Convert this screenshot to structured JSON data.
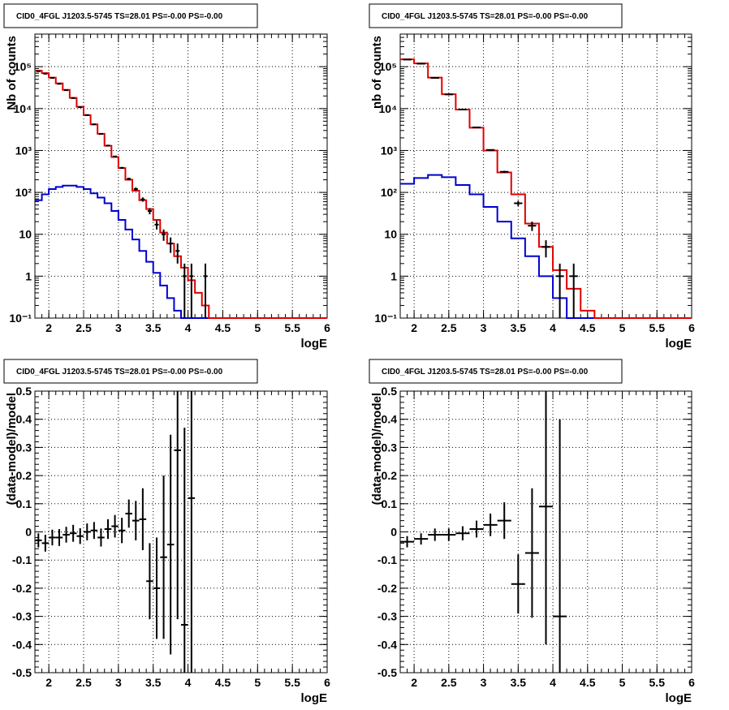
{
  "chart_data": [
    {
      "id": "p0",
      "type": "histogram",
      "title": "CID0_4FGL J1203.5-5745 TS=28.01 PS=-0.00 PS=-0.00",
      "xlabel": "logE",
      "ylabel": "Nb of counts",
      "log_y": true,
      "xlim": [
        1.8,
        6
      ],
      "ylim": [
        0.1,
        600000
      ],
      "grid": true,
      "x_ticks": [
        "2",
        "2.5",
        "3",
        "3.5",
        "4",
        "4.5",
        "5",
        "5.5",
        "6"
      ],
      "x_tick_values": [
        2,
        2.5,
        3,
        3.5,
        4,
        4.5,
        5,
        5.5,
        6
      ],
      "y_ticks": [
        "10⁻¹",
        "1",
        "10",
        "10²",
        "10³",
        "10⁴",
        "10⁵"
      ],
      "y_tick_values": [
        0.1,
        1,
        10,
        100,
        1000,
        10000,
        100000
      ],
      "bin_edges": [
        1.8,
        1.9,
        2.0,
        2.1,
        2.2,
        2.3,
        2.4,
        2.5,
        2.6,
        2.7,
        2.8,
        2.9,
        3.0,
        3.1,
        3.2,
        3.3,
        3.4,
        3.5,
        3.6,
        3.7,
        3.8,
        3.9,
        4.0,
        4.1,
        4.2,
        4.3,
        4.4,
        4.5,
        4.6,
        4.7,
        4.8,
        4.9,
        5.0,
        5.1,
        5.2,
        5.3,
        5.4,
        5.5,
        5.6,
        5.7,
        5.8,
        5.9,
        6.0
      ],
      "model_total": [
        80000,
        70000,
        55000,
        40000,
        28000,
        18000,
        11000,
        7000,
        4200,
        2500,
        1300,
        700,
        380,
        200,
        110,
        65,
        40,
        22,
        11,
        6,
        3,
        1.6,
        0.8,
        0.4,
        0.2,
        0.1,
        0.08,
        0.08,
        0.08,
        0.08,
        0.08,
        0.08,
        0.08,
        0.08,
        0.08,
        0.08,
        0.08,
        0.08,
        0.08,
        0.08,
        0.08,
        0.08
      ],
      "model_source": [
        65,
        90,
        120,
        135,
        145,
        145,
        135,
        120,
        95,
        75,
        55,
        36,
        22,
        13,
        7.5,
        4,
        2.2,
        1.2,
        0.6,
        0.3,
        0.15,
        0.08,
        0.08,
        0.08,
        0.08,
        0.08,
        0.08,
        0.08,
        0.08,
        0.08,
        0.08,
        0.08,
        0.08,
        0.08,
        0.08,
        0.08,
        0.08,
        0.08,
        0.08,
        0.08,
        0.08,
        0.08
      ],
      "data_points": [
        {
          "x": 1.85,
          "y": 78000,
          "err": 280
        },
        {
          "x": 1.95,
          "y": 68000,
          "err": 260
        },
        {
          "x": 2.05,
          "y": 54000,
          "err": 230
        },
        {
          "x": 2.15,
          "y": 39000,
          "err": 200
        },
        {
          "x": 2.25,
          "y": 27500,
          "err": 165
        },
        {
          "x": 2.35,
          "y": 17800,
          "err": 135
        },
        {
          "x": 2.45,
          "y": 10800,
          "err": 105
        },
        {
          "x": 2.55,
          "y": 7000,
          "err": 85
        },
        {
          "x": 2.65,
          "y": 4200,
          "err": 65
        },
        {
          "x": 2.75,
          "y": 2480,
          "err": 50
        },
        {
          "x": 2.85,
          "y": 1310,
          "err": 36
        },
        {
          "x": 2.95,
          "y": 720,
          "err": 27
        },
        {
          "x": 3.05,
          "y": 385,
          "err": 20
        },
        {
          "x": 3.15,
          "y": 210,
          "err": 14
        },
        {
          "x": 3.25,
          "y": 120,
          "err": 11
        },
        {
          "x": 3.35,
          "y": 68,
          "err": 8
        },
        {
          "x": 3.45,
          "y": 36,
          "err": 6
        },
        {
          "x": 3.55,
          "y": 17,
          "err": 4
        },
        {
          "x": 3.65,
          "y": 10,
          "err": 3
        },
        {
          "x": 3.75,
          "y": 6,
          "err": 2.4
        },
        {
          "x": 3.85,
          "y": 4,
          "err": 2
        },
        {
          "x": 3.95,
          "y": 1,
          "err": 1
        },
        {
          "x": 4.05,
          "y": 1,
          "err": 1
        },
        {
          "x": 4.25,
          "y": 1,
          "err": 1
        }
      ]
    },
    {
      "id": "p1",
      "type": "histogram",
      "title": "CID0_4FGL J1203.5-5745 TS=28.01 PS=-0.00 PS=-0.00",
      "xlabel": "logE",
      "ylabel": "nb of counts",
      "log_y": true,
      "xlim": [
        1.8,
        6
      ],
      "ylim": [
        0.1,
        600000
      ],
      "grid": true,
      "x_ticks": [
        "2",
        "2.5",
        "3",
        "3.5",
        "4",
        "4.5",
        "5",
        "5.5",
        "6"
      ],
      "x_tick_values": [
        2,
        2.5,
        3,
        3.5,
        4,
        4.5,
        5,
        5.5,
        6
      ],
      "y_ticks": [
        "10⁻¹",
        "1",
        "10",
        "10²",
        "10³",
        "10⁴",
        "10⁵"
      ],
      "y_tick_values": [
        0.1,
        1,
        10,
        100,
        1000,
        10000,
        100000
      ],
      "bin_edges": [
        1.8,
        2.0,
        2.2,
        2.4,
        2.6,
        2.8,
        3.0,
        3.2,
        3.4,
        3.6,
        3.8,
        4.0,
        4.2,
        4.4,
        4.6,
        4.8,
        5.0,
        5.2,
        5.4,
        5.6,
        5.8,
        6.0
      ],
      "model_total": [
        150000,
        120000,
        55000,
        22000,
        9500,
        3500,
        1000,
        300,
        90,
        18,
        5,
        1.4,
        0.5,
        0.15,
        0.08,
        0.08,
        0.08,
        0.08,
        0.08,
        0.08,
        0.08
      ],
      "model_source": [
        160,
        220,
        260,
        230,
        150,
        90,
        45,
        20,
        8,
        3,
        1,
        0.3,
        0.1,
        0.08,
        0.08,
        0.08,
        0.08,
        0.08,
        0.08,
        0.08,
        0.08
      ],
      "data_points": [
        {
          "x": 1.9,
          "y": 148000,
          "err": 380
        },
        {
          "x": 2.1,
          "y": 118000,
          "err": 340
        },
        {
          "x": 2.3,
          "y": 54000,
          "err": 230
        },
        {
          "x": 2.5,
          "y": 21800,
          "err": 150
        },
        {
          "x": 2.7,
          "y": 9500,
          "err": 98
        },
        {
          "x": 2.9,
          "y": 3550,
          "err": 60
        },
        {
          "x": 3.1,
          "y": 1030,
          "err": 32
        },
        {
          "x": 3.3,
          "y": 310,
          "err": 18
        },
        {
          "x": 3.5,
          "y": 55,
          "err": 7.5
        },
        {
          "x": 3.7,
          "y": 16,
          "err": 4
        },
        {
          "x": 3.9,
          "y": 5,
          "err": 2.2
        },
        {
          "x": 4.1,
          "y": 1,
          "err": 1
        },
        {
          "x": 4.3,
          "y": 1,
          "err": 1
        }
      ]
    },
    {
      "id": "p2",
      "type": "scatter",
      "title": "CID0_4FGL J1203.5-5745 TS=28.01 PS=-0.00 PS=-0.00",
      "xlabel": "logE",
      "ylabel": "(data-model)/model",
      "xlim": [
        1.8,
        6
      ],
      "ylim": [
        -0.5,
        0.5
      ],
      "grid": true,
      "x_ticks": [
        "2",
        "2.5",
        "3",
        "3.5",
        "4",
        "4.5",
        "5",
        "5.5",
        "6"
      ],
      "x_tick_values": [
        2,
        2.5,
        3,
        3.5,
        4,
        4.5,
        5,
        5.5,
        6
      ],
      "y_ticks": [
        "-0.5",
        "-0.4",
        "-0.3",
        "-0.2",
        "-0.1",
        "0",
        "0.1",
        "0.2",
        "0.3",
        "0.4",
        "0.5"
      ],
      "y_tick_values": [
        -0.5,
        -0.4,
        -0.3,
        -0.2,
        -0.1,
        0,
        0.1,
        0.2,
        0.3,
        0.4,
        0.5
      ],
      "xerr": 0.05,
      "points": [
        {
          "x": 1.85,
          "y": -0.03,
          "err": 0.025
        },
        {
          "x": 1.95,
          "y": -0.04,
          "err": 0.03
        },
        {
          "x": 2.05,
          "y": -0.02,
          "err": 0.028
        },
        {
          "x": 2.15,
          "y": -0.02,
          "err": 0.03
        },
        {
          "x": 2.25,
          "y": -0.01,
          "err": 0.028
        },
        {
          "x": 2.35,
          "y": -0.005,
          "err": 0.03
        },
        {
          "x": 2.45,
          "y": -0.015,
          "err": 0.028
        },
        {
          "x": 2.55,
          "y": 0.0,
          "err": 0.03
        },
        {
          "x": 2.65,
          "y": 0.005,
          "err": 0.03
        },
        {
          "x": 2.75,
          "y": -0.02,
          "err": 0.032
        },
        {
          "x": 2.85,
          "y": 0.01,
          "err": 0.035
        },
        {
          "x": 2.95,
          "y": 0.02,
          "err": 0.04
        },
        {
          "x": 3.05,
          "y": 0.005,
          "err": 0.045
        },
        {
          "x": 3.15,
          "y": 0.065,
          "err": 0.05
        },
        {
          "x": 3.25,
          "y": 0.04,
          "err": 0.07
        },
        {
          "x": 3.35,
          "y": 0.045,
          "err": 0.11
        },
        {
          "x": 3.45,
          "y": -0.175,
          "err": 0.135
        },
        {
          "x": 3.55,
          "y": -0.2,
          "err": 0.18
        },
        {
          "x": 3.65,
          "y": -0.09,
          "err": 0.29
        },
        {
          "x": 3.75,
          "y": -0.045,
          "err": 0.39
        },
        {
          "x": 3.85,
          "y": 0.29,
          "err": 0.6
        },
        {
          "x": 3.95,
          "y": -0.33,
          "err": 0.7
        },
        {
          "x": 4.05,
          "y": 0.12,
          "err": 0.9
        }
      ]
    },
    {
      "id": "p3",
      "type": "scatter",
      "title": "CID0_4FGL J1203.5-5745 TS=28.01 PS=-0.00 PS=-0.00",
      "xlabel": "logE",
      "ylabel": "(data-model)/model",
      "xlim": [
        1.8,
        6
      ],
      "ylim": [
        -0.5,
        0.5
      ],
      "grid": true,
      "x_ticks": [
        "2",
        "2.5",
        "3",
        "3.5",
        "4",
        "4.5",
        "5",
        "5.5",
        "6"
      ],
      "x_tick_values": [
        2,
        2.5,
        3,
        3.5,
        4,
        4.5,
        5,
        5.5,
        6
      ],
      "y_ticks": [
        "-0.5",
        "-0.4",
        "-0.3",
        "-0.2",
        "-0.1",
        "0",
        "0.1",
        "0.2",
        "0.3",
        "0.4",
        "0.5"
      ],
      "y_tick_values": [
        -0.5,
        -0.4,
        -0.3,
        -0.2,
        -0.1,
        0,
        0.1,
        0.2,
        0.3,
        0.4,
        0.5
      ],
      "xerr": 0.1,
      "points": [
        {
          "x": 1.9,
          "y": -0.035,
          "err": 0.02
        },
        {
          "x": 2.1,
          "y": -0.025,
          "err": 0.02
        },
        {
          "x": 2.3,
          "y": -0.01,
          "err": 0.022
        },
        {
          "x": 2.5,
          "y": -0.01,
          "err": 0.022
        },
        {
          "x": 2.7,
          "y": -0.005,
          "err": 0.025
        },
        {
          "x": 2.9,
          "y": 0.01,
          "err": 0.03
        },
        {
          "x": 3.1,
          "y": 0.025,
          "err": 0.04
        },
        {
          "x": 3.3,
          "y": 0.04,
          "err": 0.065
        },
        {
          "x": 3.5,
          "y": -0.185,
          "err": 0.105
        },
        {
          "x": 3.7,
          "y": -0.075,
          "err": 0.23
        },
        {
          "x": 3.9,
          "y": 0.09,
          "err": 0.49
        },
        {
          "x": 4.1,
          "y": -0.3,
          "err": 0.7
        }
      ]
    }
  ]
}
